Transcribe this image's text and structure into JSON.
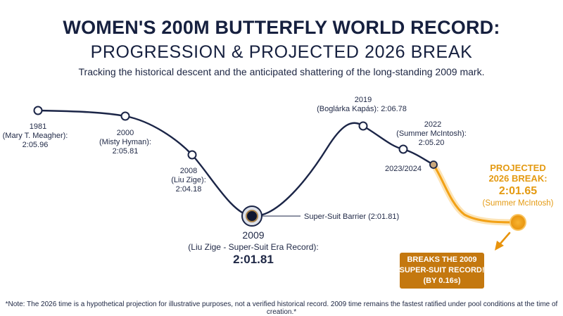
{
  "header": {
    "title_line1": "WOMEN'S 200M BUTTERFLY WORLD RECORD:",
    "title_line2": "PROGRESSION & PROJECTED 2026 BREAK",
    "subtitle": "Tracking the historical descent and the anticipated shattering of the long-standing 2009 mark."
  },
  "chart_data": {
    "type": "line",
    "title": "WOMEN'S 200M BUTTERFLY WORLD RECORD: PROGRESSION & PROJECTED 2026 BREAK",
    "xlabel": "",
    "ylabel": "",
    "points": [
      {
        "year_label": "1981",
        "swimmer": "(Mary T. Meagher):",
        "time": "2:05.96"
      },
      {
        "year_label": "2000",
        "swimmer": "(Misty Hyman):",
        "time": "2:05.81"
      },
      {
        "year_label": "2008",
        "swimmer": "(Liu Zige):",
        "time": "2:04.18"
      },
      {
        "year_label": "2009",
        "swimmer": "(Liu Zige - Super-Suit Era Record):",
        "time": "2:01.81"
      },
      {
        "year_label": "2019",
        "swimmer": "(Boglárka Kapás): 2:06.78",
        "time": ""
      },
      {
        "year_label": "2022",
        "swimmer": "(Summer McIntosh):",
        "time": "2:05.20"
      },
      {
        "year_label": "2023/2024",
        "swimmer": "",
        "time": ""
      }
    ],
    "barrier_label": "Super-Suit Barrier (2:01.81)",
    "projection": {
      "line1": "PROJECTED",
      "line2": "2026 BREAK:",
      "time": "2:01.65",
      "swimmer": "(Summer McIntosh)"
    },
    "callout": [
      "BREAKS THE 2009",
      "SUPER-SUIT RECORD!",
      "(BY 0.16s)"
    ],
    "colors": {
      "line": "#1b2547",
      "projection": "#f2a116",
      "callout_bg": "#c4780f"
    }
  },
  "footnote": "*Note: The 2026 time is a hypothetical projection for illustrative purposes, not a verified historical record. 2009 time remains the fastest ratified under pool conditions at the time of creation.*"
}
